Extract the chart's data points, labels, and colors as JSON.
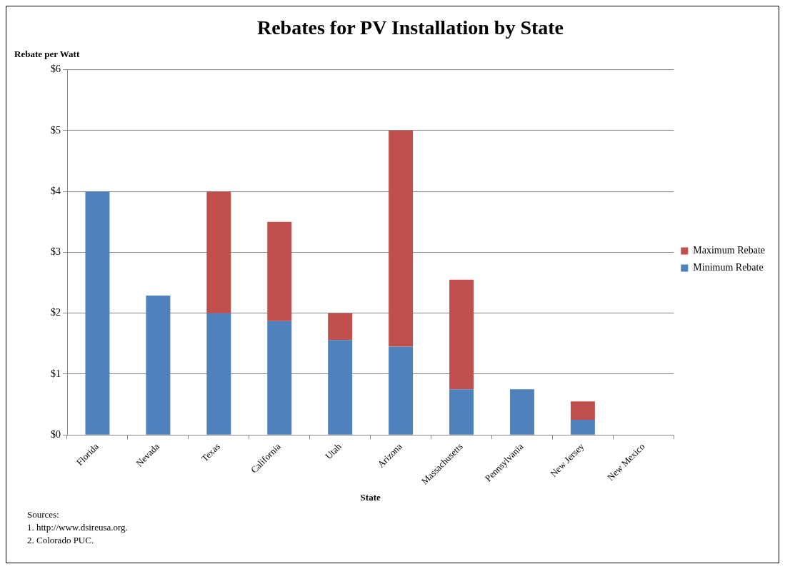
{
  "chart_data": {
    "type": "bar",
    "title": "Rebates for PV Installation by State",
    "xlabel": "State",
    "ylabel": "Rebate per Watt",
    "categories": [
      "Florida",
      "Nevada",
      "Texas",
      "California",
      "Utah",
      "Arizona",
      "Massachusetts",
      "Pennsylvania",
      "New Jersey",
      "New Mexico"
    ],
    "series": [
      {
        "name": "Minimum Rebate",
        "color": "#4f81bd",
        "values": [
          4,
          2.29,
          2,
          1.87,
          1.56,
          1.45,
          0.75,
          0.75,
          0.25,
          0
        ]
      },
      {
        "name": "Maximum Rebate",
        "color": "#c0504d",
        "values": [
          0,
          0,
          2,
          1.63,
          0.44,
          3.55,
          1.8,
          0,
          0.3,
          0
        ]
      }
    ],
    "stacked": true,
    "ylim": [
      0,
      6
    ],
    "yticks": [
      {
        "value": 0,
        "label": "$0"
      },
      {
        "value": 1,
        "label": "$1"
      },
      {
        "value": 2,
        "label": "$2"
      },
      {
        "value": 3,
        "label": "$3"
      },
      {
        "value": 4,
        "label": "$4"
      },
      {
        "value": 5,
        "label": "$5"
      },
      {
        "value": 6,
        "label": "$6"
      }
    ],
    "grid": "y",
    "legend": "right",
    "annotations": [
      "Sources:",
      "1. http://www.dsireusa.org.",
      "2. Colorado PUC."
    ]
  }
}
